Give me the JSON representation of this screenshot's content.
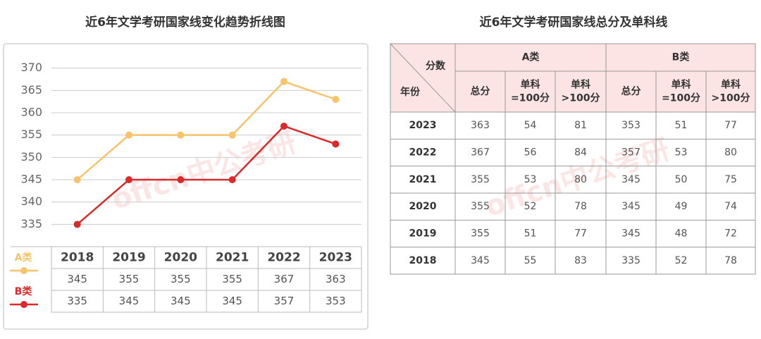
{
  "chart_data": {
    "type": "line",
    "title": "近6年文学考研国家线变化趋势折线图",
    "categories": [
      "2018",
      "2019",
      "2020",
      "2021",
      "2022",
      "2023"
    ],
    "series": [
      {
        "name": "A类",
        "color": "#f7c46c",
        "values": [
          345,
          355,
          355,
          355,
          367,
          363
        ]
      },
      {
        "name": "B类",
        "color": "#d92b2b",
        "values": [
          335,
          345,
          345,
          345,
          357,
          353
        ]
      }
    ],
    "ylim": [
      330,
      375
    ],
    "yticks": [
      335,
      340,
      345,
      350,
      355,
      360,
      365,
      370
    ],
    "grid": true
  },
  "table": {
    "title": "近6年文学考研国家线总分及单科线",
    "corner_top": "分数",
    "corner_bottom": "年份",
    "groups": [
      "A类",
      "B类"
    ],
    "columns": [
      [
        "总分"
      ],
      [
        "单科",
        "=100分"
      ],
      [
        "单科",
        ">100分"
      ],
      [
        "总分"
      ],
      [
        "单科",
        "=100分"
      ],
      [
        "单科",
        ">100分"
      ]
    ],
    "rows": [
      [
        "2023",
        363,
        54,
        81,
        353,
        51,
        77
      ],
      [
        "2022",
        367,
        56,
        84,
        357,
        53,
        80
      ],
      [
        "2021",
        355,
        53,
        80,
        345,
        50,
        75
      ],
      [
        "2020",
        355,
        52,
        78,
        345,
        49,
        74
      ],
      [
        "2019",
        355,
        51,
        77,
        345,
        48,
        72
      ],
      [
        "2018",
        345,
        55,
        83,
        335,
        52,
        78
      ]
    ]
  },
  "watermark": "offcn中公考研"
}
